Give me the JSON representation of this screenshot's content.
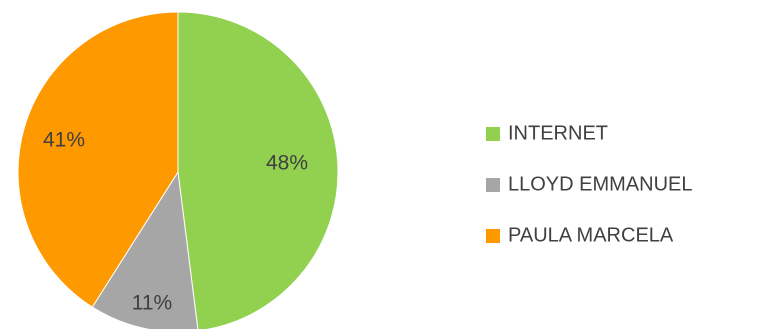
{
  "chart_data": {
    "type": "pie",
    "categories": [
      "INTERNET",
      "LLOYD EMMANUEL",
      "PAULA MARCELA"
    ],
    "values": [
      48,
      11,
      41
    ],
    "labels": [
      "48%",
      "11%",
      "41%"
    ],
    "colors": [
      "#92d050",
      "#a6a6a6",
      "#ff9900"
    ],
    "title": "",
    "legend_position": "right",
    "start_angle_deg": 0,
    "direction": "clockwise"
  }
}
